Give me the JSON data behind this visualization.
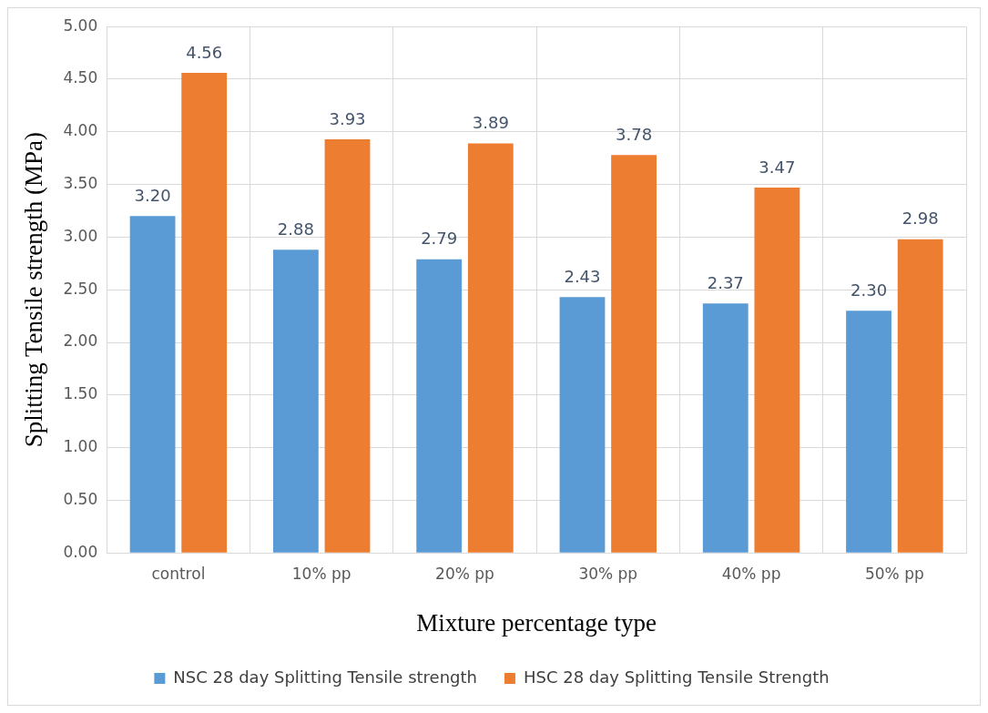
{
  "chart_data": {
    "type": "bar",
    "xlabel": "Mixture percentage type",
    "ylabel": "Splitting Tensile strength (MPa)",
    "categories": [
      "control",
      "10% pp",
      "20% pp",
      "30% pp",
      "40% pp",
      "50% pp"
    ],
    "series": [
      {
        "name": "NSC 28 day Splitting Tensile strength",
        "color": "#5b9bd5",
        "values": [
          3.2,
          2.88,
          2.79,
          2.43,
          2.37,
          2.3
        ],
        "value_labels": [
          "3.20",
          "2.88",
          "2.79",
          "2.43",
          "2.37",
          "2.30"
        ]
      },
      {
        "name": "HSC 28 day Splitting Tensile Strength",
        "color": "#ed7d31",
        "values": [
          4.56,
          3.93,
          3.89,
          3.78,
          3.47,
          2.98
        ],
        "value_labels": [
          "4.56",
          "3.93",
          "3.89",
          "3.78",
          "3.47",
          "2.98"
        ]
      }
    ],
    "ylim": [
      0,
      5
    ],
    "yticks": [
      {
        "value": 0,
        "label": "0.00"
      },
      {
        "value": 0.5,
        "label": "0.50"
      },
      {
        "value": 1,
        "label": "1.00"
      },
      {
        "value": 1.5,
        "label": "1.50"
      },
      {
        "value": 2,
        "label": "2.00"
      },
      {
        "value": 2.5,
        "label": "2.50"
      },
      {
        "value": 3,
        "label": "3.00"
      },
      {
        "value": 3.5,
        "label": "3.50"
      },
      {
        "value": 4,
        "label": "4.00"
      },
      {
        "value": 4.5,
        "label": "4.50"
      },
      {
        "value": 5,
        "label": "5.00"
      }
    ],
    "grid": true,
    "legend": "bottom"
  }
}
